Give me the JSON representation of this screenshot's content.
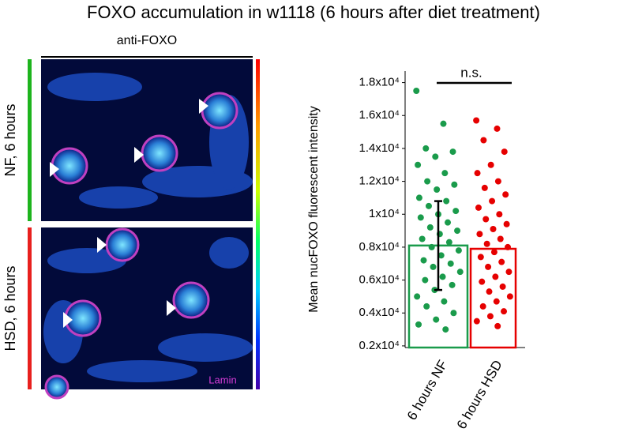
{
  "image_panel": {
    "header": "anti-FOXO",
    "rows": [
      "NF, 6 hours",
      "HSD, 6 hours"
    ],
    "row_colors": [
      "#1db41d",
      "#e8201e"
    ],
    "stain_label": "Lamin"
  },
  "chart_data": {
    "type": "bar",
    "title": "FOXO accumulation in w1118 (6 hours after diet treatment)",
    "ylabel": "Mean nucFOXO fluorescent intensity",
    "annotation": "n.s.",
    "categories": [
      "6 hours NF",
      "6 hours HSD"
    ],
    "values": [
      8100,
      7900
    ],
    "errors": [
      2700,
      null
    ],
    "colors": [
      "#1a9b4b",
      "#e60000"
    ],
    "points": [
      [
        17500,
        15500,
        14000,
        13800,
        13500,
        13000,
        12500,
        12000,
        11800,
        11500,
        11000,
        10800,
        10500,
        10200,
        10000,
        9800,
        9500,
        9200,
        9000,
        8800,
        8500,
        8300,
        8000,
        7800,
        7500,
        7200,
        7000,
        6800,
        6500,
        6200,
        6000,
        5700,
        5400,
        5000,
        4700,
        4400,
        4000,
        3600,
        3300,
        3000
      ],
      [
        15700,
        15200,
        14500,
        13800,
        13000,
        12500,
        12000,
        11600,
        11200,
        10800,
        10400,
        10000,
        9700,
        9400,
        9100,
        8800,
        8500,
        8200,
        8000,
        7700,
        7400,
        7100,
        6800,
        6500,
        6200,
        5900,
        5600,
        5300,
        5000,
        4700,
        4400,
        4100,
        3800,
        3500,
        3200
      ]
    ],
    "ylim": [
      1900,
      18700
    ],
    "yticks": [
      {
        "value": 2000,
        "label": "0.2x10⁴"
      },
      {
        "value": 4000,
        "label": "0.4x10⁴"
      },
      {
        "value": 6000,
        "label": "0.6x10⁴"
      },
      {
        "value": 8000,
        "label": "0.8x10⁴"
      },
      {
        "value": 10000,
        "label": "1x10⁴"
      },
      {
        "value": 12000,
        "label": "1.2x10⁴"
      },
      {
        "value": 14000,
        "label": "1.4x10⁴"
      },
      {
        "value": 16000,
        "label": "1.6x10⁴"
      },
      {
        "value": 18000,
        "label": "1.8x10⁴"
      }
    ]
  }
}
